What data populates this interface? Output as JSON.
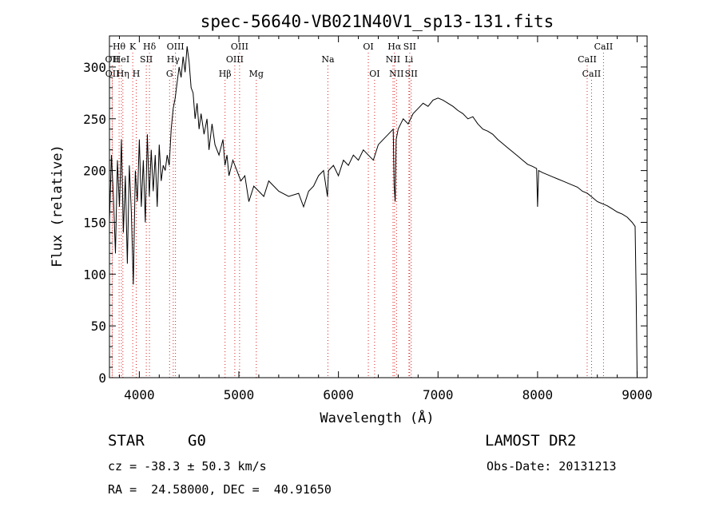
{
  "chart_data": {
    "type": "line",
    "title": "spec-56640-VB021N40V1_sp13-131.fits",
    "xlabel": "Wavelength (Å)",
    "ylabel": "Flux (relative)",
    "xlim": [
      3700,
      9100
    ],
    "ylim": [
      0,
      330
    ],
    "xticks": [
      4000,
      5000,
      6000,
      7000,
      8000,
      9000
    ],
    "yticks": [
      0,
      50,
      100,
      150,
      200,
      250,
      300
    ],
    "grid": false,
    "series": [
      {
        "x": [
          3700,
          3720,
          3740,
          3760,
          3780,
          3800,
          3820,
          3840,
          3860,
          3880,
          3900,
          3920,
          3940,
          3960,
          3980,
          4000,
          4020,
          4040,
          4060,
          4080,
          4100,
          4120,
          4140,
          4160,
          4180,
          4200,
          4220,
          4240,
          4260,
          4280,
          4300,
          4320,
          4340,
          4360,
          4380,
          4400,
          4420,
          4440,
          4460,
          4480,
          4500,
          4520,
          4540,
          4560,
          4580,
          4600,
          4620,
          4650,
          4680,
          4700,
          4730,
          4760,
          4800,
          4840,
          4860,
          4880,
          4900,
          4940,
          4980,
          5020,
          5060,
          5100,
          5150,
          5200,
          5250,
          5300,
          5400,
          5500,
          5600,
          5650,
          5700,
          5750,
          5800,
          5850,
          5890,
          5900,
          5950,
          6000,
          6050,
          6100,
          6150,
          6200,
          6250,
          6300,
          6350,
          6400,
          6450,
          6500,
          6550,
          6560,
          6570,
          6580,
          6600,
          6650,
          6700,
          6750,
          6800,
          6850,
          6900,
          6950,
          7000,
          7050,
          7100,
          7150,
          7200,
          7250,
          7300,
          7350,
          7400,
          7450,
          7500,
          7550,
          7600,
          7650,
          7700,
          7750,
          7800,
          7850,
          7900,
          7950,
          7990,
          8000,
          8010,
          8050,
          8100,
          8150,
          8200,
          8250,
          8300,
          8350,
          8400,
          8450,
          8500,
          8550,
          8600,
          8650,
          8700,
          8750,
          8800,
          8850,
          8900,
          8950,
          8980,
          8990,
          9000
        ],
        "y": [
          150,
          215,
          175,
          120,
          210,
          165,
          230,
          140,
          195,
          110,
          205,
          160,
          90,
          200,
          170,
          230,
          165,
          210,
          150,
          235,
          175,
          220,
          180,
          215,
          165,
          225,
          190,
          205,
          200,
          215,
          205,
          240,
          260,
          270,
          285,
          300,
          290,
          310,
          295,
          320,
          305,
          280,
          275,
          250,
          265,
          240,
          255,
          235,
          250,
          220,
          245,
          225,
          215,
          230,
          205,
          215,
          195,
          210,
          200,
          190,
          195,
          170,
          185,
          180,
          175,
          190,
          180,
          175,
          178,
          165,
          180,
          185,
          195,
          200,
          175,
          200,
          205,
          195,
          210,
          205,
          215,
          210,
          220,
          215,
          210,
          225,
          230,
          235,
          240,
          185,
          170,
          230,
          240,
          250,
          245,
          255,
          260,
          265,
          262,
          268,
          270,
          268,
          265,
          262,
          258,
          255,
          250,
          252,
          245,
          240,
          238,
          235,
          230,
          226,
          222,
          218,
          214,
          210,
          206,
          204,
          202,
          165,
          200,
          198,
          196,
          194,
          192,
          190,
          188,
          186,
          184,
          180,
          178,
          174,
          170,
          168,
          166,
          163,
          160,
          158,
          155,
          150,
          146,
          80,
          0
        ]
      }
    ],
    "annotations": [
      {
        "label": "Hθ",
        "x": 3797,
        "row": 1
      },
      {
        "label": "K",
        "x": 3934,
        "row": 1
      },
      {
        "label": "Hδ",
        "x": 4102,
        "row": 1
      },
      {
        "label": "OII",
        "x": 3727,
        "row": 2
      },
      {
        "label": "HeI",
        "x": 3820,
        "row": 2
      },
      {
        "label": "SII",
        "x": 4070,
        "row": 2
      },
      {
        "label": "OII",
        "x": 3729,
        "row": 3
      },
      {
        "label": "Hη",
        "x": 3835,
        "row": 3
      },
      {
        "label": "H",
        "x": 3969,
        "row": 3
      },
      {
        "label": "OIII",
        "x": 4363,
        "row": 1
      },
      {
        "label": "Hγ",
        "x": 4341,
        "row": 2
      },
      {
        "label": "G",
        "x": 4304,
        "row": 3
      },
      {
        "label": "OIII",
        "x": 5007,
        "row": 1
      },
      {
        "label": "OIII",
        "x": 4959,
        "row": 2
      },
      {
        "label": "Hβ",
        "x": 4861,
        "row": 3
      },
      {
        "label": "Mg",
        "x": 5175,
        "row": 3
      },
      {
        "label": "Na",
        "x": 5894,
        "row": 2
      },
      {
        "label": "OI",
        "x": 6300,
        "row": 1
      },
      {
        "label": "OI",
        "x": 6363,
        "row": 3
      },
      {
        "label": "Hα",
        "x": 6563,
        "row": 1
      },
      {
        "label": "SII",
        "x": 6716,
        "row": 1
      },
      {
        "label": "NII",
        "x": 6548,
        "row": 2
      },
      {
        "label": "Li",
        "x": 6708,
        "row": 2
      },
      {
        "label": "NII",
        "x": 6583,
        "row": 3
      },
      {
        "label": "SII",
        "x": 6731,
        "row": 3
      },
      {
        "label": "CaII",
        "x": 8662,
        "row": 1
      },
      {
        "label": "CaII",
        "x": 8498,
        "row": 2
      },
      {
        "label": "CaII",
        "x": 8542,
        "row": 3
      }
    ]
  },
  "info": {
    "class": "STAR",
    "subclass": "G0",
    "survey": "LAMOST DR2",
    "cz": "cz = -38.3 ± 50.3 km/s",
    "obs_date": "Obs-Date: 20131213",
    "radec": "RA =  24.58000, DEC =  40.91650"
  }
}
